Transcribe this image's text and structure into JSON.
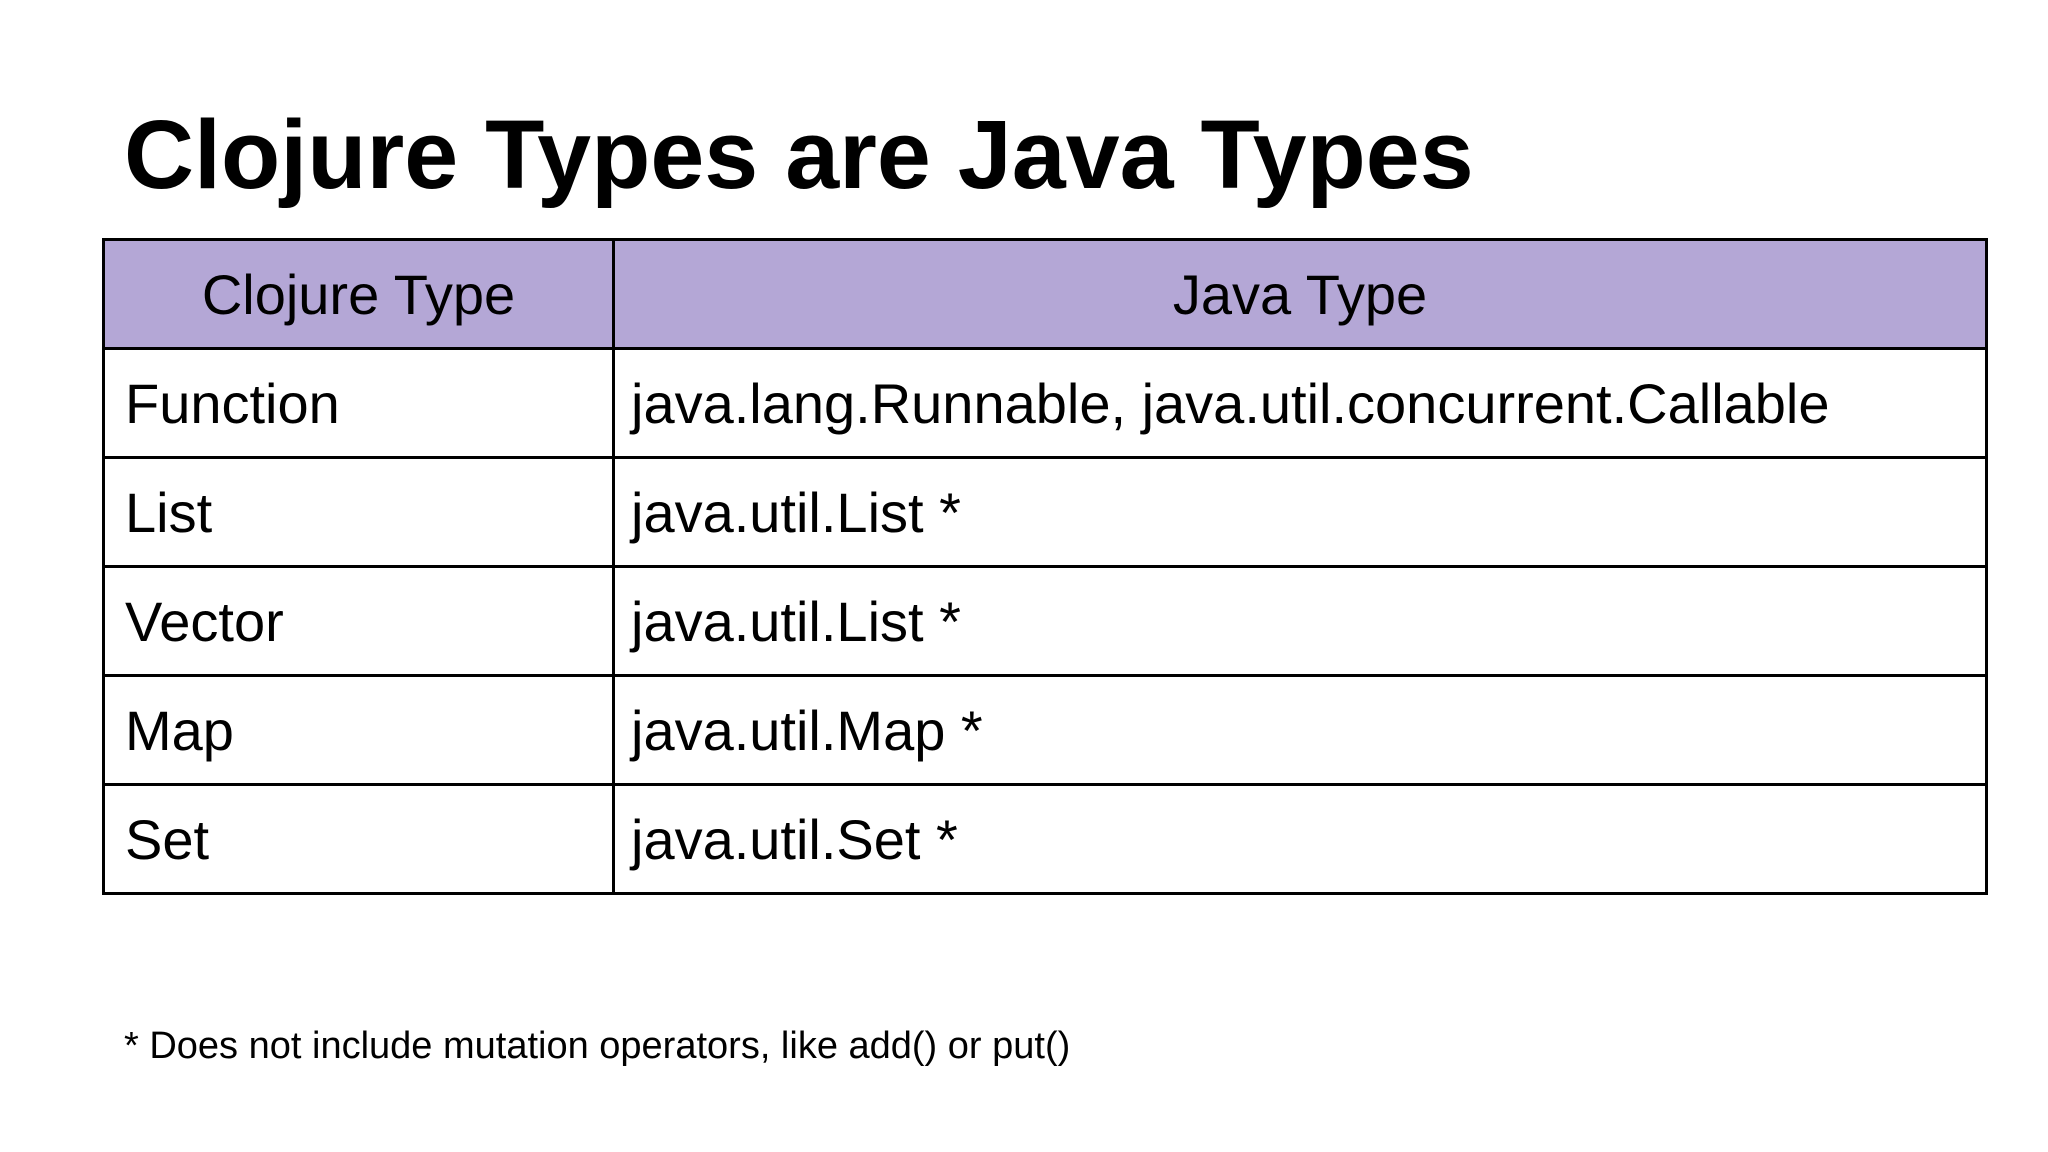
{
  "slide": {
    "title": "Clojure Types are Java Types",
    "table": {
      "header_bg": "#b4a7d6",
      "border_color": "#000000",
      "columns": [
        "Clojure Type",
        "Java Type"
      ],
      "rows": [
        {
          "clojure_type": "Function",
          "java_type": "java.lang.Runnable, java.util.concurrent.Callable"
        },
        {
          "clojure_type": "List",
          "java_type": "java.util.List *"
        },
        {
          "clojure_type": "Vector",
          "java_type": "java.util.List *"
        },
        {
          "clojure_type": "Map",
          "java_type": "java.util.Map *"
        },
        {
          "clojure_type": "Set",
          "java_type": "java.util.Set *"
        }
      ]
    },
    "footnote": "* Does not include mutation operators, like add() or put()"
  }
}
